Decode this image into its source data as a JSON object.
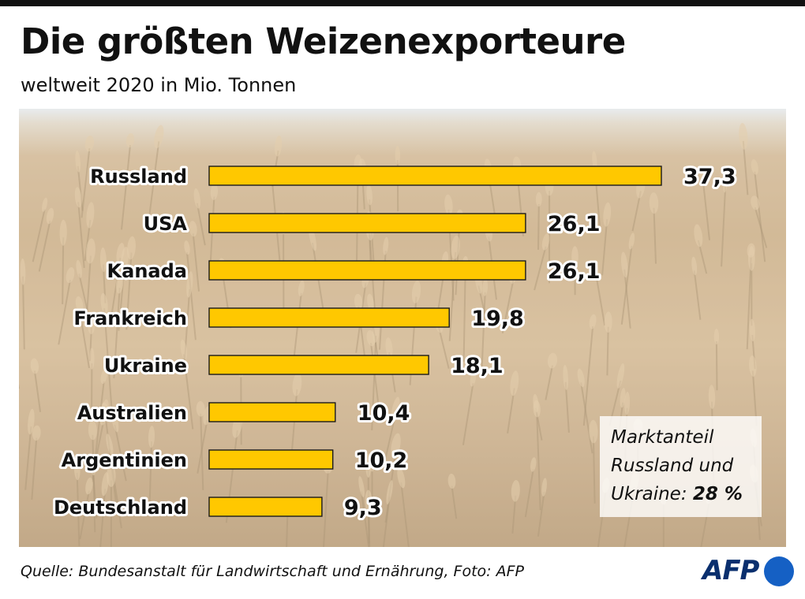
{
  "header": {
    "title": "Die größten Weizenexporteure",
    "subtitle": "weltweit 2020 in Mio. Tonnen"
  },
  "chart_data": {
    "type": "bar",
    "orientation": "horizontal",
    "title": "Die größten Weizenexporteure",
    "subtitle": "weltweit 2020 in Mio. Tonnen",
    "categories": [
      "Russland",
      "USA",
      "Kanada",
      "Frankreich",
      "Ukraine",
      "Australien",
      "Argentinien",
      "Deutschland"
    ],
    "values": [
      37.3,
      26.1,
      26.1,
      19.8,
      18.1,
      10.4,
      10.2,
      9.3
    ],
    "value_labels": [
      "37,3",
      "26,1",
      "26,1",
      "19,8",
      "18,1",
      "10,4",
      "10,2",
      "9,3"
    ],
    "xlim": [
      0,
      37.3
    ],
    "grid": false,
    "legend": "none",
    "bar_color": "#ffc800",
    "bar_outline": "#1a1a1a"
  },
  "note": {
    "line1": "Marktanteil",
    "line2": "Russland und",
    "line3_prefix": "Ukraine: ",
    "line3_value": "28 %"
  },
  "source": "Quelle: Bundesanstalt für Landwirtschaft und Ernährung, Foto: AFP",
  "logo": {
    "text": "AFP",
    "accent_color": "#1560c4",
    "text_color": "#0a2f6e"
  }
}
